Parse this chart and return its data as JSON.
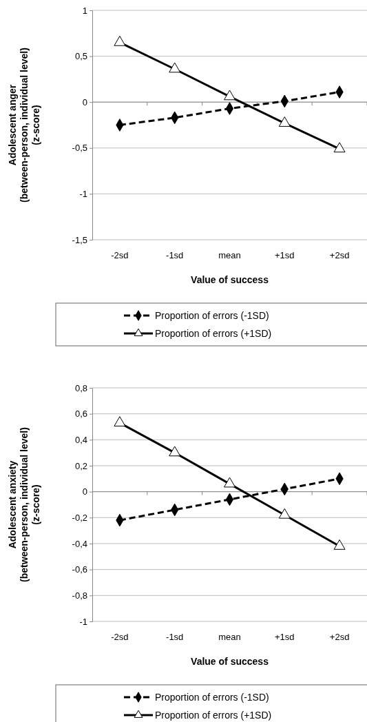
{
  "chart_data": [
    {
      "type": "line",
      "ylabel": "Adolescent anger\n(between-person, individual level)\n(z-score)",
      "xlabel": "Value of success",
      "categories": [
        "-2sd",
        "-1sd",
        "mean",
        "+1sd",
        "+2sd"
      ],
      "series": [
        {
          "name": "Proportion of errors (-1SD)",
          "color": "#000000",
          "values": [
            -0.25,
            -0.17,
            -0.07,
            0.01,
            0.11
          ],
          "marker": "diamond",
          "line_style": "dashed"
        },
        {
          "name": "Proportion of errors (+1SD)",
          "color": "#000000",
          "values": [
            0.65,
            0.36,
            0.06,
            -0.23,
            -0.51
          ],
          "marker": "triangle",
          "line_style": "solid"
        }
      ],
      "ylim": [
        -1.5,
        1
      ],
      "yticks": [
        {
          "value": -1.5,
          "label": "-1,5"
        },
        -1,
        {
          "value": -0.5,
          "label": "-0,5"
        },
        0,
        {
          "value": 0.5,
          "label": "0,5"
        },
        1
      ],
      "grid": "y",
      "legend": "bottom"
    },
    {
      "type": "line",
      "ylabel": "Adolescent anxiety\n(between-person, individual level)\n(z-score)",
      "xlabel": "Value of success",
      "categories": [
        "-2sd",
        "-1sd",
        "mean",
        "+1sd",
        "+2sd"
      ],
      "series": [
        {
          "name": "Proportion of errors (-1SD)",
          "color": "#000000",
          "values": [
            -0.22,
            -0.14,
            -0.06,
            0.02,
            0.1
          ],
          "marker": "diamond",
          "line_style": "dashed"
        },
        {
          "name": "Proportion of errors (+1SD)",
          "color": "#000000",
          "values": [
            0.53,
            0.3,
            0.06,
            -0.18,
            -0.42
          ],
          "marker": "triangle",
          "line_style": "solid"
        }
      ],
      "ylim": [
        -1,
        0.8
      ],
      "yticks": [
        -1,
        {
          "value": -0.8,
          "label": "-0,8"
        },
        {
          "value": -0.6,
          "label": "-0,6"
        },
        {
          "value": -0.4,
          "label": "-0,4"
        },
        {
          "value": -0.2,
          "label": "-0,2"
        },
        0,
        {
          "value": 0.2,
          "label": "0,2"
        },
        {
          "value": 0.4,
          "label": "0,4"
        },
        {
          "value": 0.6,
          "label": "0,6"
        },
        {
          "value": 0.8,
          "label": "0,8"
        }
      ],
      "grid": "y",
      "legend": "bottom"
    }
  ]
}
